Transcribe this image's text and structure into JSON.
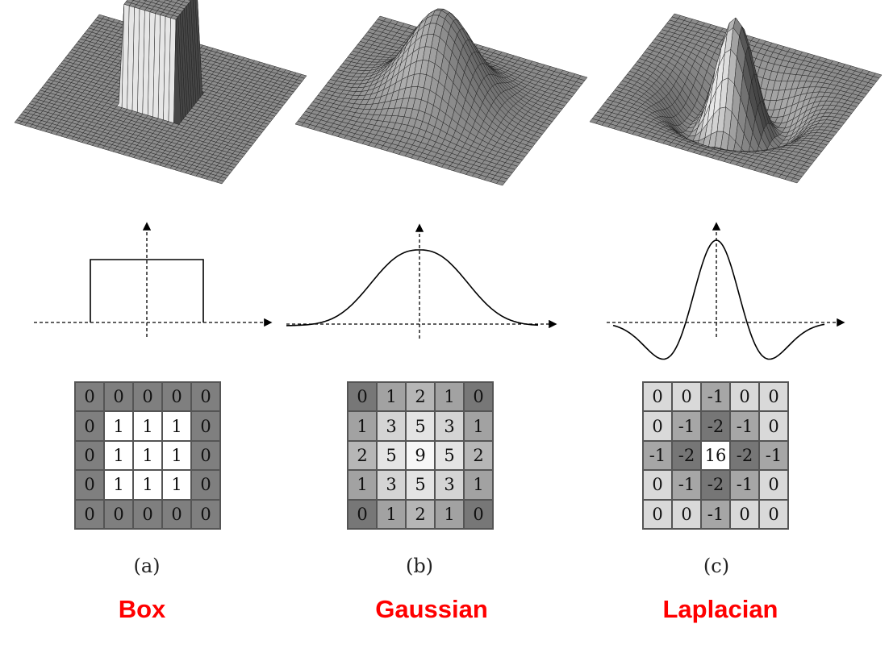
{
  "panels": [
    {
      "id": "a",
      "sublabel": "(a)",
      "name": "Box",
      "kernel": "box",
      "matrix": [
        [
          0,
          0,
          0,
          0,
          0
        ],
        [
          0,
          1,
          1,
          1,
          0
        ],
        [
          0,
          1,
          1,
          1,
          0
        ],
        [
          0,
          1,
          1,
          1,
          0
        ],
        [
          0,
          0,
          0,
          0,
          0
        ]
      ]
    },
    {
      "id": "b",
      "sublabel": "(b)",
      "name": "Gaussian",
      "kernel": "gaussian",
      "matrix": [
        [
          0,
          1,
          2,
          1,
          0
        ],
        [
          1,
          3,
          5,
          3,
          1
        ],
        [
          2,
          5,
          9,
          5,
          2
        ],
        [
          1,
          3,
          5,
          3,
          1
        ],
        [
          0,
          1,
          2,
          1,
          0
        ]
      ]
    },
    {
      "id": "c",
      "sublabel": "(c)",
      "name": "Laplacian",
      "kernel": "laplacian",
      "matrix": [
        [
          "0",
          "0",
          "-1",
          "0",
          "0"
        ],
        [
          "0",
          "-1",
          "-2",
          "-1",
          "0"
        ],
        [
          "-1",
          "-2",
          "16",
          "-2",
          "-1"
        ],
        [
          "0",
          "-1",
          "-2",
          "-1",
          "0"
        ],
        [
          "0",
          "0",
          "-1",
          "0",
          "0"
        ]
      ]
    }
  ],
  "colors": {
    "label": "#ff0000",
    "mesh_fill": "#8a8a8a",
    "mesh_line": "#222222"
  }
}
